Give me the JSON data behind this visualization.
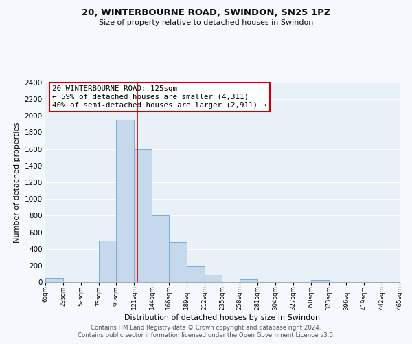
{
  "title": "20, WINTERBOURNE ROAD, SWINDON, SN25 1PZ",
  "subtitle": "Size of property relative to detached houses in Swindon",
  "xlabel": "Distribution of detached houses by size in Swindon",
  "ylabel": "Number of detached properties",
  "footnote1": "Contains HM Land Registry data © Crown copyright and database right 2024.",
  "footnote2": "Contains public sector information licensed under the Open Government Licence v3.0.",
  "bar_edges": [
    6,
    29,
    52,
    75,
    98,
    121,
    144,
    166,
    189,
    212,
    235,
    258,
    281,
    304,
    327,
    350,
    373,
    396,
    419,
    442,
    465
  ],
  "bar_heights": [
    50,
    0,
    0,
    500,
    1950,
    1600,
    800,
    480,
    190,
    90,
    0,
    35,
    0,
    0,
    0,
    25,
    0,
    0,
    0,
    0
  ],
  "bar_color": "#c5d8ec",
  "bar_edge_color": "#7badd4",
  "vline_x": 125,
  "vline_color": "#cc0000",
  "annotation_text": "20 WINTERBOURNE ROAD: 125sqm\n← 59% of detached houses are smaller (4,311)\n40% of semi-detached houses are larger (2,911) →",
  "annotation_box_color": "#ffffff",
  "annotation_box_edge": "#cc0000",
  "ylim": [
    0,
    2400
  ],
  "yticks": [
    0,
    200,
    400,
    600,
    800,
    1000,
    1200,
    1400,
    1600,
    1800,
    2000,
    2200,
    2400
  ],
  "xtick_labels": [
    "6sqm",
    "29sqm",
    "52sqm",
    "75sqm",
    "98sqm",
    "121sqm",
    "144sqm",
    "166sqm",
    "189sqm",
    "212sqm",
    "235sqm",
    "258sqm",
    "281sqm",
    "304sqm",
    "327sqm",
    "350sqm",
    "373sqm",
    "396sqm",
    "419sqm",
    "442sqm",
    "465sqm"
  ],
  "background_color": "#f5f8fc",
  "grid_color": "#ffffff",
  "plot_bg_color": "#e8f0f8"
}
